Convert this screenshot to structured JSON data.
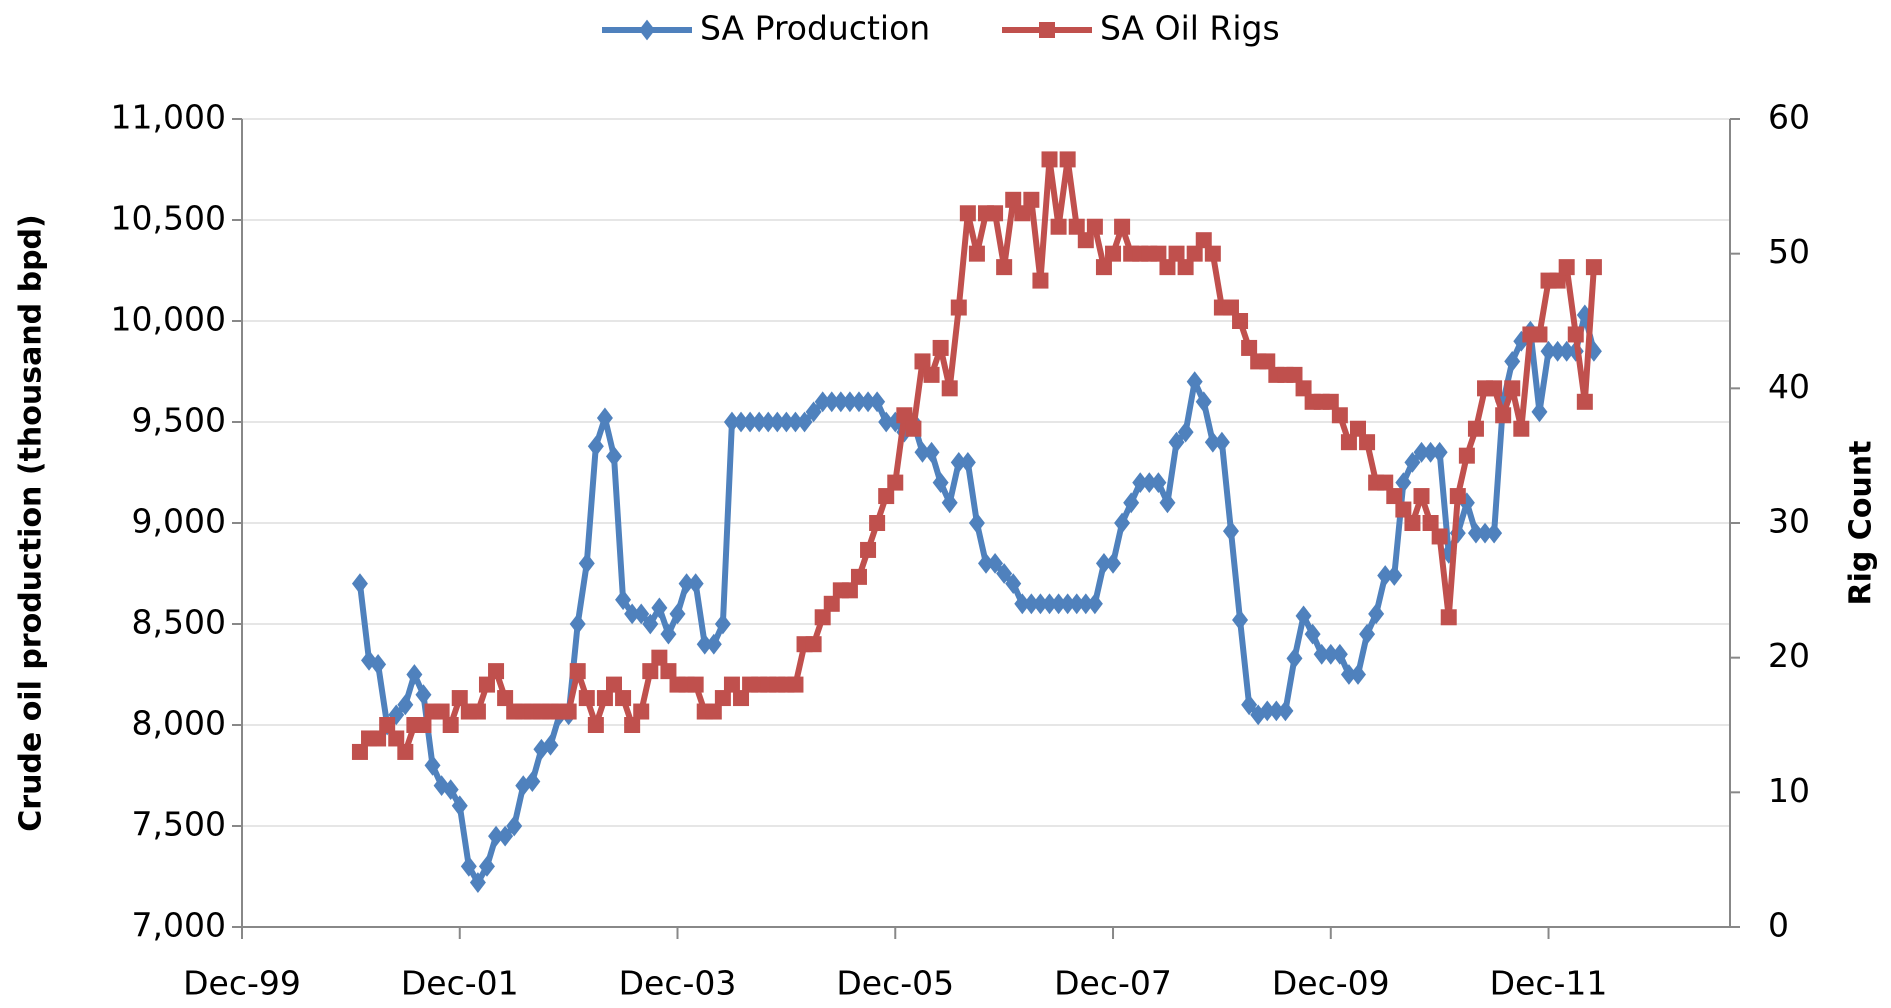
{
  "chart_data": {
    "type": "line",
    "legend": "top",
    "grid": true,
    "y_label": "Crude oil production (thousand bpd)",
    "y2_label": "Rig Count",
    "xlim": [
      "Dec-99",
      "Aug-13"
    ],
    "xticks": [
      "Dec-99",
      "Dec-01",
      "Dec-03",
      "Dec-05",
      "Dec-07",
      "Dec-09",
      "Dec-11"
    ],
    "ylim": [
      7000,
      11000
    ],
    "yticks": [
      {
        "value": 7000,
        "label": "7,000"
      },
      {
        "value": 7500,
        "label": "7,500"
      },
      {
        "value": 8000,
        "label": "8,000"
      },
      {
        "value": 8500,
        "label": "8,500"
      },
      {
        "value": 9000,
        "label": "9,000"
      },
      {
        "value": 9500,
        "label": "9,500"
      },
      {
        "value": 10000,
        "label": "10,000"
      },
      {
        "value": 10500,
        "label": "10,500"
      },
      {
        "value": 11000,
        "label": "11,000"
      }
    ],
    "y2lim": [
      0,
      60
    ],
    "y2ticks": [
      0,
      10,
      20,
      30,
      40,
      50,
      60
    ],
    "x": [
      "Jan-01",
      "Feb-01",
      "Mar-01",
      "Apr-01",
      "May-01",
      "Jun-01",
      "Jul-01",
      "Aug-01",
      "Sep-01",
      "Oct-01",
      "Nov-01",
      "Dec-01",
      "Jan-02",
      "Feb-02",
      "Mar-02",
      "Apr-02",
      "May-02",
      "Jun-02",
      "Jul-02",
      "Aug-02",
      "Sep-02",
      "Oct-02",
      "Nov-02",
      "Dec-02",
      "Jan-03",
      "Feb-03",
      "Mar-03",
      "Apr-03",
      "May-03",
      "Jun-03",
      "Jul-03",
      "Aug-03",
      "Sep-03",
      "Oct-03",
      "Nov-03",
      "Dec-03",
      "Jan-04",
      "Feb-04",
      "Mar-04",
      "Apr-04",
      "May-04",
      "Jun-04",
      "Jul-04",
      "Aug-04",
      "Sep-04",
      "Oct-04",
      "Nov-04",
      "Dec-04",
      "Jan-05",
      "Feb-05",
      "Mar-05",
      "Apr-05",
      "May-05",
      "Jun-05",
      "Jul-05",
      "Aug-05",
      "Sep-05",
      "Oct-05",
      "Nov-05",
      "Dec-05",
      "Jan-06",
      "Feb-06",
      "Mar-06",
      "Apr-06",
      "May-06",
      "Jun-06",
      "Jul-06",
      "Aug-06",
      "Sep-06",
      "Oct-06",
      "Nov-06",
      "Dec-06",
      "Jan-07",
      "Feb-07",
      "Mar-07",
      "Apr-07",
      "May-07",
      "Jun-07",
      "Jul-07",
      "Aug-07",
      "Sep-07",
      "Oct-07",
      "Nov-07",
      "Dec-07",
      "Jan-08",
      "Feb-08",
      "Mar-08",
      "Apr-08",
      "May-08",
      "Jun-08",
      "Jul-08",
      "Aug-08",
      "Sep-08",
      "Oct-08",
      "Nov-08",
      "Dec-08",
      "Jan-09",
      "Feb-09",
      "Mar-09",
      "Apr-09",
      "May-09",
      "Jun-09",
      "Jul-09",
      "Aug-09",
      "Sep-09",
      "Oct-09",
      "Nov-09",
      "Dec-09",
      "Jan-10",
      "Feb-10",
      "Mar-10",
      "Apr-10",
      "May-10",
      "Jun-10",
      "Jul-10",
      "Aug-10",
      "Sep-10",
      "Oct-10",
      "Nov-10",
      "Dec-10",
      "Jan-11",
      "Feb-11",
      "Mar-11",
      "Apr-11",
      "May-11",
      "Jun-11",
      "Jul-11",
      "Aug-11",
      "Sep-11",
      "Oct-11",
      "Nov-11",
      "Dec-11",
      "Jan-12",
      "Feb-12",
      "Mar-12",
      "Apr-12",
      "May-12"
    ],
    "series": [
      {
        "name": "SA Production",
        "color": "#4f81bd",
        "marker": "diamond",
        "values": [
          8700,
          8320,
          8300,
          8000,
          8050,
          8100,
          8250,
          8150,
          7800,
          7700,
          7680,
          7600,
          7300,
          7220,
          7300,
          7450,
          7450,
          7500,
          7700,
          7720,
          7880,
          7900,
          8050,
          8050,
          8500,
          8800,
          9380,
          9520,
          9330,
          8620,
          8550,
          8550,
          8500,
          8580,
          8450,
          8550,
          8700,
          8700,
          8400,
          8400,
          8500,
          9500,
          9500,
          9500,
          9500,
          9500,
          9500,
          9500,
          9500,
          9500,
          9550,
          9600,
          9600,
          9600,
          9600,
          9600,
          9600,
          9600,
          9500,
          9500,
          9450,
          9500,
          9350,
          9350,
          9200,
          9100,
          9300,
          9300,
          9000,
          8800,
          8800,
          8750,
          8700,
          8600,
          8600,
          8600,
          8600,
          8600,
          8600,
          8600,
          8600,
          8600,
          8800,
          8800,
          9000,
          9100,
          9200,
          9200,
          9200,
          9100,
          9400,
          9450,
          9700,
          9600,
          9400,
          9400,
          8960,
          8520,
          8100,
          8050,
          8070,
          8070,
          8070,
          8330,
          8540,
          8450,
          8350,
          8350,
          8350,
          8250,
          8250,
          8450,
          8550,
          8740,
          8740,
          9200,
          9300,
          9350,
          9350,
          9350,
          8850,
          8950,
          9100,
          8950,
          8950,
          8950,
          9600,
          9800,
          9900,
          9950,
          9550,
          9850,
          9850,
          9850,
          9850,
          10030,
          9850
        ]
      },
      {
        "name": "SA Oil Rigs",
        "color": "#c0504d",
        "marker": "square",
        "axis": "y2",
        "values": [
          13,
          14,
          14,
          15,
          14,
          13,
          15,
          15,
          16,
          16,
          15,
          17,
          16,
          16,
          18,
          19,
          17,
          16,
          16,
          16,
          16,
          16,
          16,
          16,
          19,
          17,
          15,
          17,
          18,
          17,
          15,
          16,
          19,
          20,
          19,
          18,
          18,
          18,
          16,
          16,
          17,
          18,
          17,
          18,
          18,
          18,
          18,
          18,
          18,
          21,
          21,
          23,
          24,
          25,
          25,
          26,
          28,
          30,
          32,
          33,
          38,
          37,
          42,
          41,
          43,
          40,
          46,
          53,
          50,
          53,
          53,
          49,
          54,
          53,
          54,
          48,
          57,
          52,
          57,
          52,
          51,
          52,
          49,
          50,
          52,
          50,
          50,
          50,
          50,
          49,
          50,
          49,
          50,
          51,
          50,
          46,
          46,
          45,
          43,
          42,
          42,
          41,
          41,
          41,
          40,
          39,
          39,
          39,
          38,
          36,
          37,
          36,
          33,
          33,
          32,
          31,
          30,
          32,
          30,
          29,
          23,
          32,
          35,
          37,
          40,
          40,
          38,
          40,
          37,
          44,
          44,
          48,
          48,
          49,
          44,
          39,
          49
        ]
      }
    ]
  }
}
